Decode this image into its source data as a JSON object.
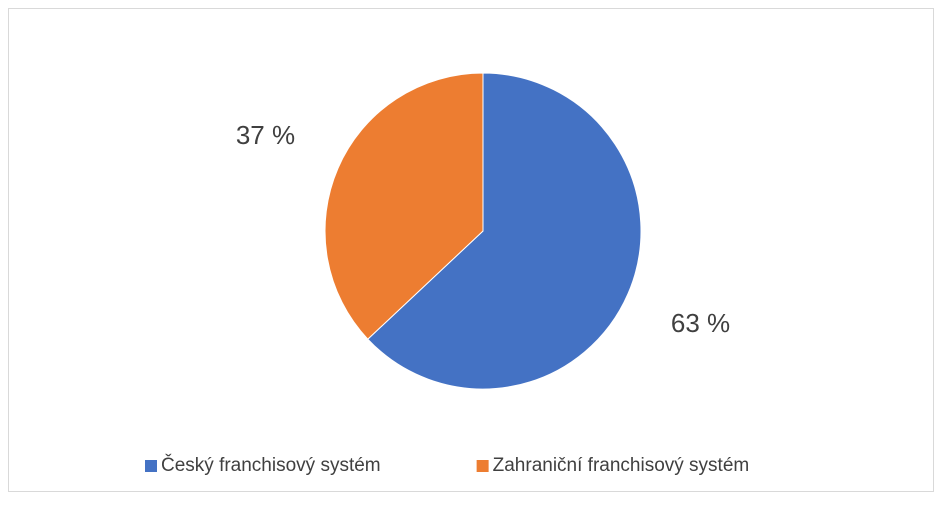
{
  "chart_data": {
    "type": "pie",
    "categories": [
      "Český franchisový systém",
      "Zahraniční franchisový systém"
    ],
    "values": [
      63,
      37
    ],
    "value_labels": [
      "63 %",
      "37 %"
    ],
    "colors": [
      "#4472c4",
      "#ed7d31"
    ],
    "legend": "bottom"
  }
}
